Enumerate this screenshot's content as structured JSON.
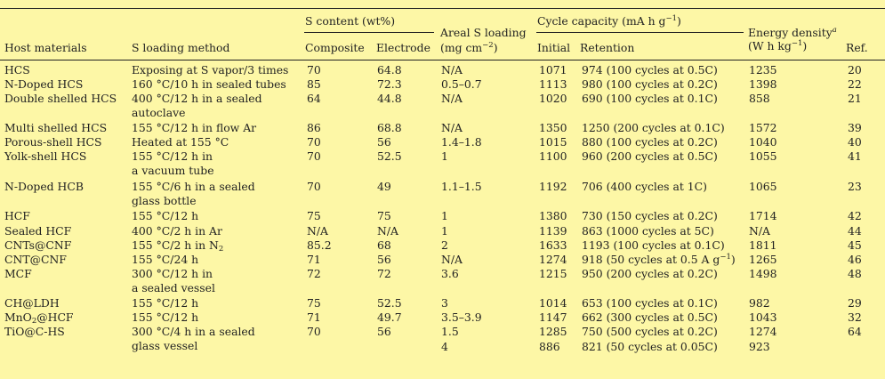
{
  "table": {
    "headers": {
      "host": "Host materials",
      "method": "S loading method",
      "s_content": "S content (wt%)",
      "composite": "Composite",
      "electrode": "Electrode",
      "areal": [
        "Areal S loading",
        "(mg cm",
        "−2",
        ")"
      ],
      "cycle_capacity": [
        "Cycle capacity (mA h g",
        "−1",
        ")"
      ],
      "initial": "Initial",
      "retention": "Retention",
      "energy": [
        "Energy density",
        "a"
      ],
      "energy_unit": [
        "(W h kg",
        "−1",
        ")"
      ],
      "ref": "Ref."
    },
    "rows": [
      {
        "host": "HCS",
        "method": [
          "Exposing at S vapor/3 times"
        ],
        "composite": "70",
        "electrode": "64.8",
        "areal": "N/A",
        "initial": "1071",
        "retention": "974 (100 cycles at 0.5C)",
        "energy": "1235",
        "ref": "20"
      },
      {
        "host": "N-Doped HCS",
        "method": [
          "160 °C/10 h in sealed tubes"
        ],
        "composite": "85",
        "electrode": "72.3",
        "areal": "0.5–0.7",
        "initial": "1113",
        "retention": "980 (100 cycles at 0.2C)",
        "energy": "1398",
        "ref": "22"
      },
      {
        "host": "Double shelled HCS",
        "method": [
          "400 °C/12 h in a sealed",
          "autoclave"
        ],
        "composite": "64",
        "electrode": "44.8",
        "areal": "N/A",
        "initial": "1020",
        "retention": "690 (100 cycles at 0.1C)",
        "energy": "858",
        "ref": "21"
      },
      {
        "host": "Multi shelled HCS",
        "method": [
          "155 °C/12 h in flow Ar"
        ],
        "composite": "86",
        "electrode": "68.8",
        "areal": "N/A",
        "initial": "1350",
        "retention": "1250 (200 cycles at 0.1C)",
        "energy": "1572",
        "ref": "39"
      },
      {
        "host": "Porous-shell HCS",
        "method": [
          "Heated at 155 °C"
        ],
        "composite": "70",
        "electrode": "56",
        "areal": "1.4–1.8",
        "initial": "1015",
        "retention": "880 (100 cycles at 0.2C)",
        "energy": "1040",
        "ref": "40"
      },
      {
        "host": "Yolk-shell HCS",
        "method": [
          "155 °C/12 h in",
          "a vacuum tube"
        ],
        "composite": "70",
        "electrode": "52.5",
        "areal": "1",
        "initial": "1100",
        "retention": "960 (200 cycles at 0.5C)",
        "energy": "1055",
        "ref": "41"
      },
      {
        "host": "N-Doped HCB",
        "method": [
          "155 °C/6 h in a sealed",
          "glass bottle"
        ],
        "composite": "70",
        "electrode": "49",
        "areal": "1.1–1.5",
        "initial": "1192",
        "retention": "706 (400 cycles at 1C)",
        "energy": "1065",
        "ref": "23"
      },
      {
        "host": "HCF",
        "method": [
          "155 °C/12 h"
        ],
        "composite": "75",
        "electrode": "75",
        "areal": "1",
        "initial": "1380",
        "retention": "730 (150 cycles at 0.2C)",
        "energy": "1714",
        "ref": "42"
      },
      {
        "host": "Sealed HCF",
        "method": [
          "400 °C/2 h in Ar"
        ],
        "composite": "N/A",
        "electrode": "N/A",
        "areal": "1",
        "initial": "1139",
        "retention": "863 (1000 cycles at 5C)",
        "energy": "N/A",
        "ref": "44"
      },
      {
        "host": "CNTs@CNF",
        "method": [
          "155 °C/2 h in N",
          "2"
        ],
        "composite": "85.2",
        "electrode": "68",
        "areal": "2",
        "initial": "1633",
        "retention": "1193 (100 cycles at 0.1C)",
        "energy": "1811",
        "ref": "45"
      },
      {
        "host": "CNT@CNF",
        "method": [
          "155 °C/24 h"
        ],
        "composite": "71",
        "electrode": "56",
        "areal": "N/A",
        "initial": "1274",
        "retention": [
          "918 (50 cycles at 0.5 A g",
          "−1",
          ")"
        ],
        "energy": "1265",
        "ref": "46"
      },
      {
        "host": "MCF",
        "method": [
          "300 °C/12 h in",
          "a sealed vessel"
        ],
        "composite": "72",
        "electrode": "72",
        "areal": "3.6",
        "initial": "1215",
        "retention": "950 (200 cycles at 0.2C)",
        "energy": "1498",
        "ref": "48"
      },
      {
        "host": "CH@LDH",
        "method": [
          "155 °C/12 h"
        ],
        "composite": "75",
        "electrode": "52.5",
        "areal": "3",
        "initial": "1014",
        "retention": "653 (100 cycles at 0.1C)",
        "energy": "982",
        "ref": "29"
      },
      {
        "host": [
          "MnO",
          "2",
          "@HCF"
        ],
        "method": [
          "155 °C/12 h"
        ],
        "composite": "71",
        "electrode": "49.7",
        "areal": "3.5–3.9",
        "initial": "1147",
        "retention": "662 (300 cycles at 0.5C)",
        "energy": "1043",
        "ref": "32"
      },
      {
        "host": "TiO@C-HS",
        "method": [
          "300 °C/4 h in a sealed",
          "glass vessel"
        ],
        "composite": "70",
        "electrode": "56",
        "areal": "1.5",
        "initial": "1285",
        "retention": "750 (500 cycles at 0.2C)",
        "energy": "1274",
        "ref": "64"
      },
      {
        "host": "",
        "method": [],
        "composite": "",
        "electrode": "",
        "areal": "4",
        "initial": "886",
        "retention": "821 (50 cycles at 0.05C)",
        "energy": "923",
        "ref": ""
      }
    ]
  }
}
